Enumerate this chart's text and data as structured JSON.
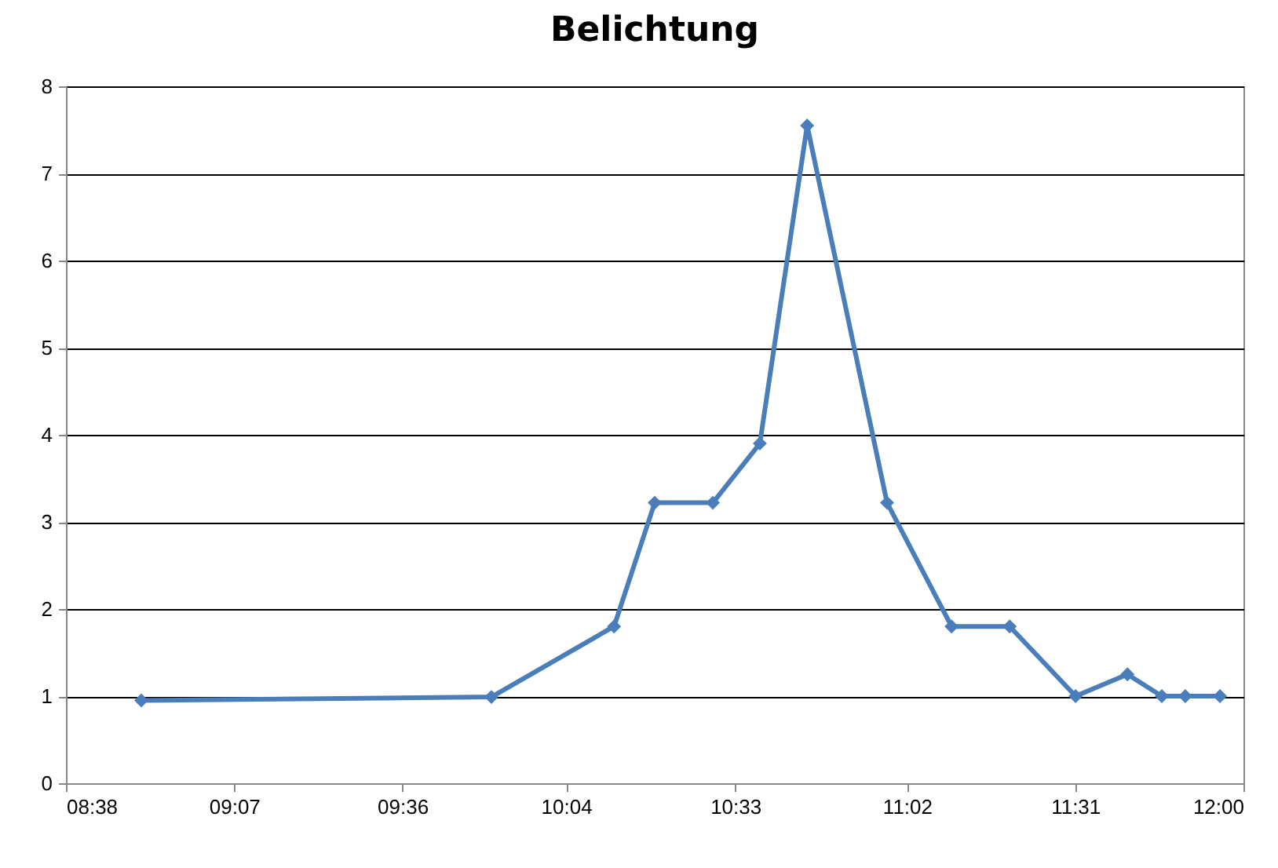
{
  "chart_data": {
    "type": "line",
    "title": "Belichtung",
    "x": [
      8.855,
      9.854,
      10.204,
      10.32,
      10.486,
      10.62,
      10.755,
      10.983,
      11.167,
      11.333,
      11.521,
      11.669,
      11.767,
      11.834,
      11.933
    ],
    "series": [
      {
        "color": "#4a7ebb",
        "values": [
          0.95,
          0.99,
          1.8,
          3.22,
          3.22,
          3.9,
          7.55,
          3.22,
          1.8,
          1.8,
          1.0,
          1.25,
          1.0,
          1.0,
          1.0
        ]
      }
    ],
    "xlim": [
      8.64,
      12
    ],
    "xticks": [
      {
        "value": 8.64,
        "label": "08:38"
      },
      {
        "value": 9.12,
        "label": "09:07"
      },
      {
        "value": 9.6,
        "label": "09:36"
      },
      {
        "value": 10.067,
        "label": "10:04"
      },
      {
        "value": 10.55,
        "label": "10:33"
      },
      {
        "value": 11.04,
        "label": "11:02"
      },
      {
        "value": 11.52,
        "label": "11:31"
      },
      {
        "value": 12,
        "label": "12:00"
      }
    ],
    "ylim": [
      0,
      8
    ],
    "yticks": [
      0,
      1,
      2,
      3,
      4,
      5,
      6,
      7,
      8
    ],
    "grid": "y",
    "marker": "diamond",
    "line_style": "solid"
  }
}
